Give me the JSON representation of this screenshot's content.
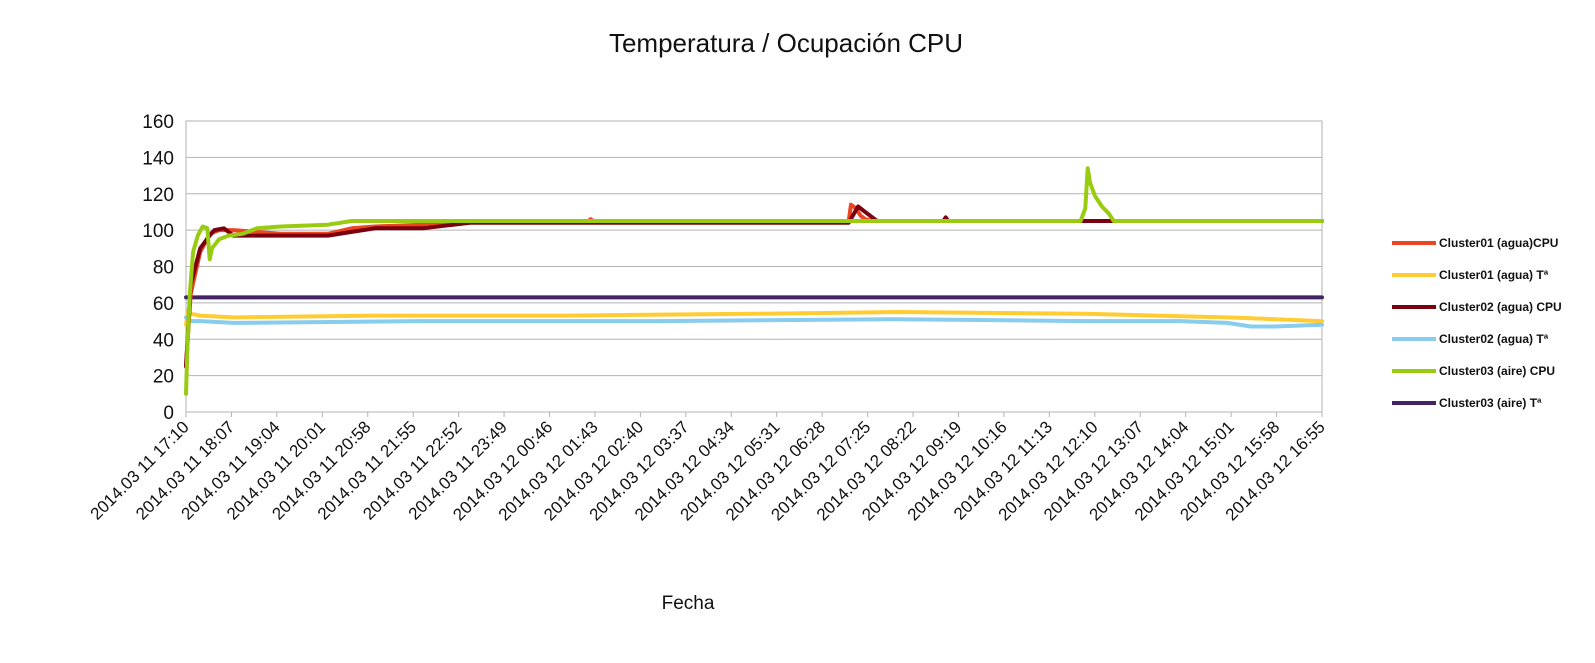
{
  "chart_data": {
    "type": "line",
    "title": "Temperatura / Ocupación CPU",
    "xlabel": "Fecha",
    "ylabel": "",
    "ylim": [
      0,
      160
    ],
    "yticks": [
      0,
      20,
      40,
      60,
      80,
      100,
      120,
      140,
      160
    ],
    "grid": true,
    "legend_position": "right",
    "x_domain": [
      0,
      24
    ],
    "x_tick_labels": [
      "2014.03 11 17:10",
      "2014.03 11 18:07",
      "2014.03 11 19:04",
      "2014.03 11 20:01",
      "2014.03 11 20:58",
      "2014.03 11 21:55",
      "2014.03 11 22:52",
      "2014.03 11 23:49",
      "2014.03 12 00:46",
      "2014.03 12 01:43",
      "2014.03 12 02:40",
      "2014.03 12 03:37",
      "2014.03 12 04:34",
      "2014.03 12 05:31",
      "2014.03 12 06:28",
      "2014.03 12 07:25",
      "2014.03 12 08:22",
      "2014.03 12 09:19",
      "2014.03 12 10:16",
      "2014.03 12 11:13",
      "2014.03 12 12:10",
      "2014.03 12 13:07",
      "2014.03 12 14:04",
      "2014.03 12 15:01",
      "2014.03 12 15:58",
      "2014.03 12 16:55"
    ],
    "series": [
      {
        "name": "Cluster01 (agua)CPU",
        "color": "#ee4422",
        "x": [
          0,
          0.1,
          0.3,
          0.5,
          0.7,
          1.0,
          2.0,
          3.0,
          3.5,
          4.0,
          5.0,
          6.0,
          8.5,
          8.55,
          8.6,
          14.0,
          14.05,
          14.15,
          14.25,
          14.35,
          14.5,
          14.7,
          24.0
        ],
        "values": [
          25,
          65,
          88,
          98,
          100,
          100,
          98,
          98,
          101,
          102,
          103,
          105,
          105,
          106,
          105,
          105,
          114,
          112,
          108,
          106,
          105,
          105,
          105
        ]
      },
      {
        "name": "Cluster01 (agua) Tª",
        "color": "#ffcc33",
        "x": [
          0,
          0.05,
          0.1,
          0.3,
          1.0,
          4.0,
          8.0,
          12.0,
          15.0,
          19.0,
          20.5,
          22.0,
          23.0,
          24.0
        ],
        "values": [
          48,
          56,
          54,
          53,
          52,
          53,
          53,
          54,
          55,
          54,
          53,
          52,
          51,
          50
        ]
      },
      {
        "name": "Cluster02 (agua) CPU",
        "color": "#7a0010",
        "x": [
          0,
          0.1,
          0.3,
          0.5,
          0.6,
          0.8,
          1.0,
          2.0,
          3.0,
          3.5,
          4.0,
          5.0,
          6.0,
          14.0,
          14.2,
          14.4,
          14.6,
          16.0,
          16.05,
          16.1,
          19.0,
          19.05,
          19.4,
          19.45,
          24.0
        ],
        "values": [
          25,
          70,
          90,
          97,
          100,
          101,
          97,
          97,
          97,
          99,
          101,
          101,
          104,
          104,
          113,
          109,
          105,
          105,
          107,
          105,
          105,
          105,
          105,
          105,
          105
        ]
      },
      {
        "name": "Cluster02 (agua) Tª",
        "color": "#88ccee",
        "x": [
          0,
          0.1,
          0.3,
          1.0,
          5.0,
          10.0,
          15.0,
          19.0,
          21.0,
          22.0,
          22.5,
          23.0,
          24.0
        ],
        "values": [
          52,
          50,
          50,
          49,
          50,
          50,
          51,
          50,
          50,
          49,
          47,
          47,
          48
        ]
      },
      {
        "name": "Cluster03 (aire) CPU",
        "color": "#99cc11",
        "x": [
          0,
          0.03,
          0.08,
          0.15,
          0.25,
          0.35,
          0.45,
          0.5,
          0.55,
          0.7,
          0.9,
          1.2,
          1.5,
          2.0,
          3.0,
          3.5,
          4.0,
          5.0,
          18.9,
          19.0,
          19.05,
          19.1,
          19.2,
          19.35,
          19.5,
          19.6,
          24.0
        ],
        "values": [
          10,
          35,
          65,
          88,
          97,
          102,
          101,
          84,
          90,
          95,
          97,
          98,
          101,
          102,
          103,
          105,
          105,
          105,
          105,
          112,
          134,
          126,
          119,
          113,
          109,
          105,
          105
        ]
      },
      {
        "name": "Cluster03 (aire) Tª",
        "color": "#442266",
        "x": [
          0,
          0.1,
          3.0,
          6.0,
          10.0,
          14.0,
          18.0,
          22.0,
          24.0
        ],
        "values": [
          63,
          63,
          63,
          63,
          63,
          63,
          63,
          63,
          63
        ]
      }
    ]
  }
}
